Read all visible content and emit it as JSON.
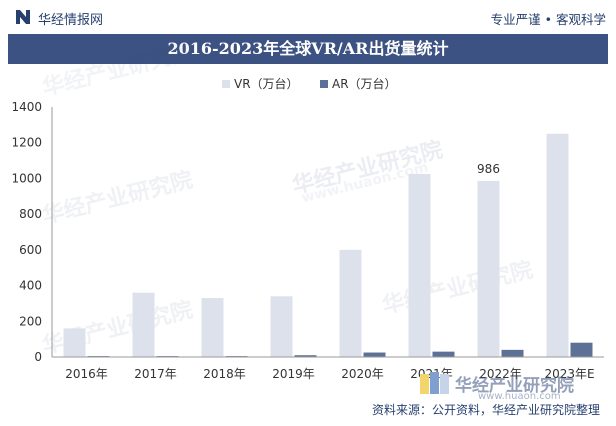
{
  "header": {
    "brand": "华经情报网",
    "tagline": "专业严谨 • 客观科学"
  },
  "title": "2016-2023年全球VR/AR出货量统计",
  "source": "资料来源：公开资料，华经产业研究院整理",
  "watermark": {
    "text": "华经产业研究院",
    "url": "www.huaon.com"
  },
  "colors": {
    "header_text": "#27406e",
    "title_bg": "#3c5282",
    "vr": "#dde1ec",
    "ar": "#5d7197"
  },
  "chart_data": {
    "type": "bar",
    "categories": [
      "2016年",
      "2017年",
      "2018年",
      "2019年",
      "2020年",
      "2021年",
      "2022年",
      "2023年E"
    ],
    "series": [
      {
        "name": "VR（万台）",
        "values": [
          160,
          360,
          330,
          340,
          600,
          1025,
          986,
          1250
        ]
      },
      {
        "name": "AR（万台）",
        "values": [
          5,
          5,
          5,
          10,
          25,
          30,
          40,
          80
        ]
      }
    ],
    "data_labels": [
      {
        "series": 0,
        "index": 6,
        "text": "986"
      }
    ],
    "ylim": [
      0,
      1400
    ],
    "yticks": [
      0,
      200,
      400,
      600,
      800,
      1000,
      1200,
      1400
    ],
    "legend_position": "top-center",
    "grid": false
  }
}
